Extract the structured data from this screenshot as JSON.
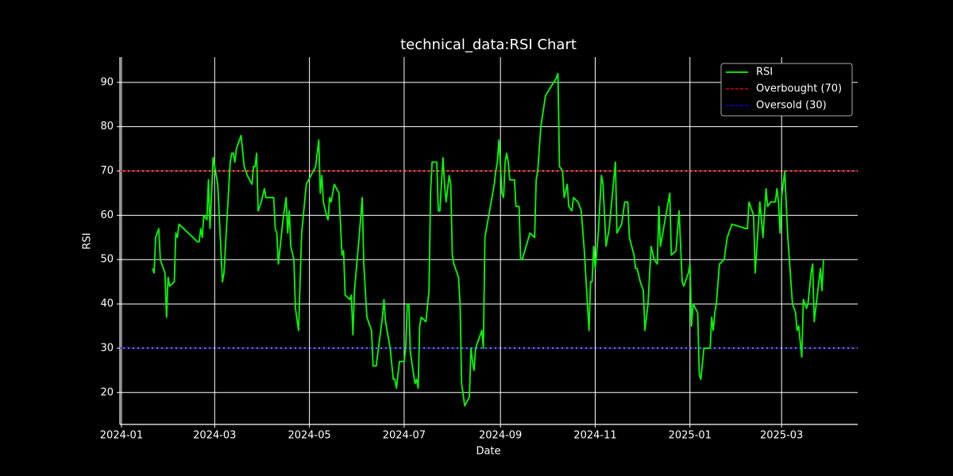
{
  "chart_data": {
    "type": "line",
    "title": "technical_data:RSI Chart",
    "xlabel": "Date",
    "ylabel": "RSI",
    "x": [
      "2024-01-21",
      "2024-01-22",
      "2024-01-23",
      "2024-01-25",
      "2024-01-26",
      "2024-01-29",
      "2024-01-30",
      "2024-01-31",
      "2024-02-01",
      "2024-02-04",
      "2024-02-05",
      "2024-02-06",
      "2024-02-07",
      "2024-02-19",
      "2024-02-20",
      "2024-02-21",
      "2024-02-22",
      "2024-02-23",
      "2024-02-25",
      "2024-02-26",
      "2024-02-27",
      "2024-02-29",
      "2024-03-03",
      "2024-03-06",
      "2024-03-07",
      "2024-03-11",
      "2024-03-12",
      "2024-03-13",
      "2024-03-14",
      "2024-03-15",
      "2024-03-18",
      "2024-03-20",
      "2024-03-22",
      "2024-03-25",
      "2024-03-26",
      "2024-03-27",
      "2024-03-28",
      "2024-03-29",
      "2024-03-31",
      "2024-04-02",
      "2024-04-03",
      "2024-04-08",
      "2024-04-09",
      "2024-04-10",
      "2024-04-11",
      "2024-04-14",
      "2024-04-16",
      "2024-04-17",
      "2024-04-18",
      "2024-04-19",
      "2024-04-21",
      "2024-04-22",
      "2024-04-24",
      "2024-04-26",
      "2024-04-29",
      "2024-05-02",
      "2024-05-05",
      "2024-05-07",
      "2024-05-08",
      "2024-05-09",
      "2024-05-10",
      "2024-05-12",
      "2024-05-13",
      "2024-05-14",
      "2024-05-15",
      "2024-05-17",
      "2024-05-20",
      "2024-05-22",
      "2024-05-23",
      "2024-05-24",
      "2024-05-27",
      "2024-05-28",
      "2024-05-29",
      "2024-05-30",
      "2024-06-02",
      "2024-06-04",
      "2024-06-05",
      "2024-06-07",
      "2024-06-10",
      "2024-06-11",
      "2024-06-13",
      "2024-06-17",
      "2024-06-18",
      "2024-06-19",
      "2024-06-22",
      "2024-06-24",
      "2024-06-25",
      "2024-06-26",
      "2024-06-28",
      "2024-07-01",
      "2024-07-02",
      "2024-07-03",
      "2024-07-04",
      "2024-07-05",
      "2024-07-08",
      "2024-07-09",
      "2024-07-10",
      "2024-07-11",
      "2024-07-12",
      "2024-07-15",
      "2024-07-17",
      "2024-07-18",
      "2024-07-19",
      "2024-07-22",
      "2024-07-23",
      "2024-07-24",
      "2024-07-26",
      "2024-07-27",
      "2024-07-28",
      "2024-07-30",
      "2024-07-31",
      "2024-08-01",
      "2024-08-02",
      "2024-08-05",
      "2024-08-06",
      "2024-08-07",
      "2024-08-09",
      "2024-08-12",
      "2024-08-13",
      "2024-08-14",
      "2024-08-15",
      "2024-08-16",
      "2024-08-20",
      "2024-08-21",
      "2024-08-22",
      "2024-08-28",
      "2024-08-29",
      "2024-08-30",
      "2024-08-31",
      "2024-09-01",
      "2024-09-02",
      "2024-09-03",
      "2024-09-04",
      "2024-09-05",
      "2024-09-06",
      "2024-09-07",
      "2024-09-10",
      "2024-09-11",
      "2024-09-13",
      "2024-09-14",
      "2024-09-15",
      "2024-09-20",
      "2024-09-23",
      "2024-09-24",
      "2024-09-25",
      "2024-09-27",
      "2024-09-30",
      "2024-10-07",
      "2024-10-08",
      "2024-10-09",
      "2024-10-11",
      "2024-10-12",
      "2024-10-14",
      "2024-10-15",
      "2024-10-17",
      "2024-10-18",
      "2024-10-21",
      "2024-10-23",
      "2024-10-25",
      "2024-10-27",
      "2024-10-28",
      "2024-10-29",
      "2024-10-30",
      "2024-10-31",
      "2024-11-01",
      "2024-11-03",
      "2024-11-05",
      "2024-11-06",
      "2024-11-08",
      "2024-11-10",
      "2024-11-14",
      "2024-11-15",
      "2024-11-18",
      "2024-11-20",
      "2024-11-22",
      "2024-11-23",
      "2024-11-26",
      "2024-11-27",
      "2024-11-28",
      "2024-11-30",
      "2024-12-02",
      "2024-12-03",
      "2024-12-05",
      "2024-12-07",
      "2024-12-09",
      "2024-12-11",
      "2024-12-12",
      "2024-12-13",
      "2024-12-19",
      "2024-12-20",
      "2024-12-23",
      "2024-12-25",
      "2024-12-27",
      "2024-12-28",
      "2024-12-31",
      "2025-01-01",
      "2025-01-02",
      "2025-01-03",
      "2025-01-06",
      "2025-01-07",
      "2025-01-08",
      "2025-01-10",
      "2025-01-14",
      "2025-01-15",
      "2025-01-16",
      "2025-01-17",
      "2025-01-18",
      "2025-01-20",
      "2025-01-23",
      "2025-01-25",
      "2025-01-28",
      "2025-02-06",
      "2025-02-07",
      "2025-02-08",
      "2025-02-11",
      "2025-02-12",
      "2025-02-15",
      "2025-02-17",
      "2025-02-19",
      "2025-02-20",
      "2025-02-22",
      "2025-02-25",
      "2025-02-26",
      "2025-02-27",
      "2025-02-28",
      "2025-03-01",
      "2025-03-03",
      "2025-03-05",
      "2025-03-07",
      "2025-03-08",
      "2025-03-10",
      "2025-03-11",
      "2025-03-12",
      "2025-03-14",
      "2025-03-15",
      "2025-03-17",
      "2025-03-18",
      "2025-03-20",
      "2025-03-21",
      "2025-03-22",
      "2025-03-24",
      "2025-03-26",
      "2025-03-27",
      "2025-03-28"
    ],
    "series": [
      {
        "name": "RSI",
        "color": "#00ff00",
        "values": [
          48,
          47,
          55,
          57,
          50,
          47,
          37,
          46,
          44,
          45,
          56,
          55,
          58,
          54,
          54,
          57,
          55,
          60,
          59,
          68,
          57,
          73,
          67,
          45,
          47,
          72,
          74,
          74,
          72,
          75,
          78,
          71,
          69,
          67,
          71,
          71,
          74,
          61,
          63,
          66,
          64,
          64,
          57,
          56,
          49,
          59,
          64,
          56,
          61,
          53,
          50,
          39,
          34,
          56,
          67,
          69,
          71,
          77,
          65,
          69,
          63,
          60,
          59,
          64,
          63,
          67,
          65,
          51,
          52,
          42,
          41,
          42,
          33,
          43,
          55,
          64,
          49,
          37,
          34,
          26,
          26,
          37,
          41,
          36,
          30,
          23,
          23,
          21,
          27,
          27,
          30,
          40,
          40,
          29,
          22,
          23,
          21,
          35,
          37,
          36,
          43,
          65,
          72,
          72,
          61,
          61,
          73,
          67,
          63,
          69,
          67,
          51,
          49,
          46,
          40,
          22,
          17,
          19,
          30,
          27,
          25,
          30,
          34,
          30,
          55,
          67,
          70,
          72,
          77,
          71,
          65,
          64,
          72,
          74,
          72,
          68,
          68,
          62,
          62,
          50,
          50,
          56,
          55,
          68,
          70,
          80,
          87,
          91,
          92,
          71,
          70,
          64,
          67,
          62,
          61,
          64,
          63,
          61,
          52,
          40,
          34,
          45,
          45,
          53,
          48,
          56,
          69,
          67,
          53,
          57,
          72,
          56,
          58,
          63,
          63,
          55,
          51,
          48,
          48,
          45,
          43,
          34,
          40,
          53,
          50,
          49,
          62,
          53,
          65,
          51,
          52,
          61,
          45,
          44,
          47,
          49,
          35,
          40,
          38,
          24,
          23,
          30,
          30,
          37,
          34,
          38,
          40,
          49,
          50,
          55,
          58,
          57,
          57,
          63,
          60,
          47,
          63,
          55,
          66,
          62,
          63,
          63,
          66,
          63,
          56,
          64,
          70,
          55,
          45,
          40,
          38,
          34,
          35,
          28,
          41,
          39,
          40,
          47,
          49,
          36,
          42,
          48,
          43,
          50
        ]
      }
    ],
    "hlines": [
      {
        "name": "Overbought (70)",
        "value": 70,
        "color": "#ff0000"
      },
      {
        "name": "Oversold (30)",
        "value": 30,
        "color": "#0000ff"
      }
    ],
    "xlim": [
      "2023-12-31",
      "2025-04-19"
    ],
    "xticks": [
      {
        "value": "2024-01-01",
        "label": "2024-01"
      },
      {
        "value": "2024-03-01",
        "label": "2024-03"
      },
      {
        "value": "2024-05-01",
        "label": "2024-05"
      },
      {
        "value": "2024-07-01",
        "label": "2024-07"
      },
      {
        "value": "2024-09-01",
        "label": "2024-09"
      },
      {
        "value": "2024-11-01",
        "label": "2024-11"
      },
      {
        "value": "2025-01-01",
        "label": "2025-01"
      },
      {
        "value": "2025-03-01",
        "label": "2025-03"
      }
    ],
    "ylim": [
      12.8,
      95.7
    ],
    "yticks": [
      20,
      30,
      40,
      50,
      60,
      70,
      80,
      90
    ],
    "grid": true,
    "legend": "upper right"
  }
}
